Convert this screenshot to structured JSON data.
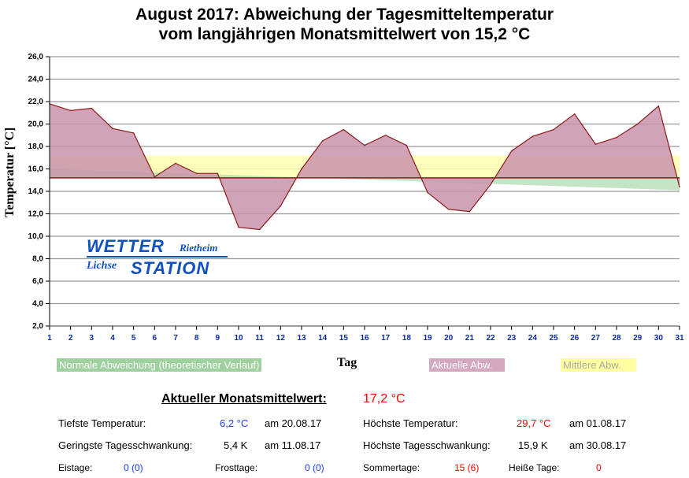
{
  "chart_data": {
    "type": "area",
    "title": [
      "August 2017: Abweichung der Tagesmitteltemperatur",
      "vom langjährigen Monatsmittelwert von 15,2 °C"
    ],
    "xlabel": "Tag",
    "ylabel": "Temperatur [°C]",
    "ylim": [
      2,
      26
    ],
    "yticks": [
      "2,0",
      "4,0",
      "6,0",
      "8,0",
      "10,0",
      "12,0",
      "14,0",
      "16,0",
      "18,0",
      "20,0",
      "22,0",
      "24,0",
      "26,0"
    ],
    "x": [
      1,
      2,
      3,
      4,
      5,
      6,
      7,
      8,
      9,
      10,
      11,
      12,
      13,
      14,
      15,
      16,
      17,
      18,
      19,
      20,
      21,
      22,
      23,
      24,
      25,
      26,
      27,
      28,
      29,
      30,
      31
    ],
    "baseline": 15.2,
    "series": [
      {
        "name": "Aktuelle Abw.",
        "color": "#c993ad",
        "values": [
          21.8,
          21.2,
          21.4,
          19.6,
          19.2,
          15.3,
          16.5,
          15.6,
          15.6,
          10.8,
          10.6,
          12.7,
          16.0,
          18.5,
          19.5,
          18.1,
          19.0,
          18.1,
          13.9,
          12.4,
          12.2,
          14.6,
          17.6,
          18.9,
          19.5,
          20.9,
          18.2,
          18.8,
          20.0,
          21.6,
          14.4
        ]
      },
      {
        "name": "Normale Abweichung (theoretischer Verlauf)",
        "color": "#9fd19f",
        "start": 16.0,
        "end": 14.1
      },
      {
        "name": "Mittlere Abw.",
        "color": "#ffffb0",
        "value": 17.2
      }
    ],
    "legend": "bottom"
  },
  "logo": {
    "top": "WETTER",
    "top_right": "Rietheim",
    "bottom_left": "Lichse",
    "bottom": "STATION"
  },
  "stats": {
    "monthly_label": "Aktueller Monatsmittelwert:",
    "monthly_value": "17,2 °C",
    "min_label": "Tiefste Temperatur:",
    "min_value": "6,2 °C",
    "min_date": "am 20.08.17",
    "max_label": "Höchste Temperatur:",
    "max_value": "29,7 °C",
    "max_date": "am 01.08.17",
    "minrange_label": "Geringste Tagesschwankung:",
    "minrange_value": "5,4 K",
    "minrange_date": "am 11.08.17",
    "maxrange_label": "Höchste Tagesschwankung:",
    "maxrange_value": "15,9 K",
    "maxrange_date": "am 30.08.17",
    "eis_label": "Eistage:",
    "eis_value": "0 (0)",
    "frost_label": "Frosttage:",
    "frost_value": "0 (0)",
    "sommer_label": "Sommertage:",
    "sommer_value": "15 (6)",
    "heiss_label": "Heiße Tage:",
    "heiss_value": "0"
  }
}
